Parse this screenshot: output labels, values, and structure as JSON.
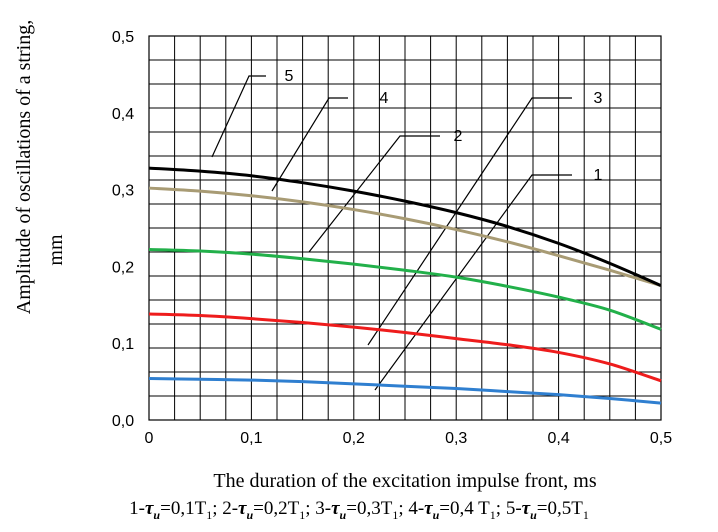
{
  "chart_data": {
    "type": "line",
    "title": "",
    "xlabel": "The duration of the excitation impulse front, ms",
    "ylabel_lines": [
      "Amplitude of oscillations of a string,",
      "mm"
    ],
    "xlim": [
      0,
      0.5
    ],
    "ylim": [
      0,
      0.5
    ],
    "x_ticks": [
      "0",
      "0,1",
      "0,2",
      "0,3",
      "0,4",
      "0,5"
    ],
    "y_ticks": [
      "0,0",
      "0,1",
      "0,2",
      "0,3",
      "0,4",
      "0,5"
    ],
    "grid": true,
    "series": [
      {
        "name": "1",
        "color": "#2f7fd0",
        "x": [
          0,
          0.05,
          0.1,
          0.15,
          0.2,
          0.25,
          0.3,
          0.35,
          0.4,
          0.45,
          0.5
        ],
        "y": [
          0.054,
          0.053,
          0.052,
          0.05,
          0.047,
          0.044,
          0.041,
          0.037,
          0.033,
          0.028,
          0.022
        ]
      },
      {
        "name": "2",
        "color": "#ee1c1c",
        "x": [
          0,
          0.05,
          0.1,
          0.15,
          0.2,
          0.25,
          0.3,
          0.35,
          0.4,
          0.45,
          0.5
        ],
        "y": [
          0.138,
          0.136,
          0.132,
          0.127,
          0.121,
          0.114,
          0.106,
          0.098,
          0.088,
          0.073,
          0.051
        ]
      },
      {
        "name": "3",
        "color": "#22b04a",
        "x": [
          0,
          0.05,
          0.1,
          0.15,
          0.2,
          0.25,
          0.3,
          0.35,
          0.4,
          0.45,
          0.5
        ],
        "y": [
          0.222,
          0.22,
          0.216,
          0.21,
          0.203,
          0.195,
          0.186,
          0.174,
          0.16,
          0.143,
          0.118
        ]
      },
      {
        "name": "4",
        "color": "#a89b74",
        "x": [
          0,
          0.05,
          0.1,
          0.15,
          0.2,
          0.25,
          0.3,
          0.35,
          0.4,
          0.45,
          0.5
        ],
        "y": [
          0.302,
          0.298,
          0.292,
          0.284,
          0.274,
          0.262,
          0.248,
          0.232,
          0.214,
          0.195,
          0.175
        ]
      },
      {
        "name": "5",
        "color": "#000000",
        "x": [
          0,
          0.05,
          0.1,
          0.15,
          0.2,
          0.25,
          0.3,
          0.35,
          0.4,
          0.45,
          0.5
        ],
        "y": [
          0.328,
          0.324,
          0.318,
          0.309,
          0.298,
          0.285,
          0.27,
          0.252,
          0.23,
          0.204,
          0.175
        ]
      }
    ]
  },
  "caption": {
    "parts": [
      {
        "n": "1-",
        "tau": "τ",
        "sub_u": "u",
        "val": "=0,1T",
        "sub": "1",
        "sep": "; "
      },
      {
        "n": "2-",
        "tau": "τ",
        "sub_u": "u",
        "val": "=0,2T",
        "sub": "1",
        "sep": "; "
      },
      {
        "n": "3-",
        "tau": "τ",
        "sub_u": "u",
        "val": "=0,3T",
        "sub": "1",
        "sep": "; "
      },
      {
        "n": "4-",
        "tau": "τ",
        "sub_u": "u",
        "val": "=0,4 T",
        "sub": "1",
        "sep": "; "
      },
      {
        "n": "5-",
        "tau": "τ",
        "sub_u": "u",
        "val": "=0,5T",
        "sub": "1",
        "sep": ""
      }
    ]
  }
}
